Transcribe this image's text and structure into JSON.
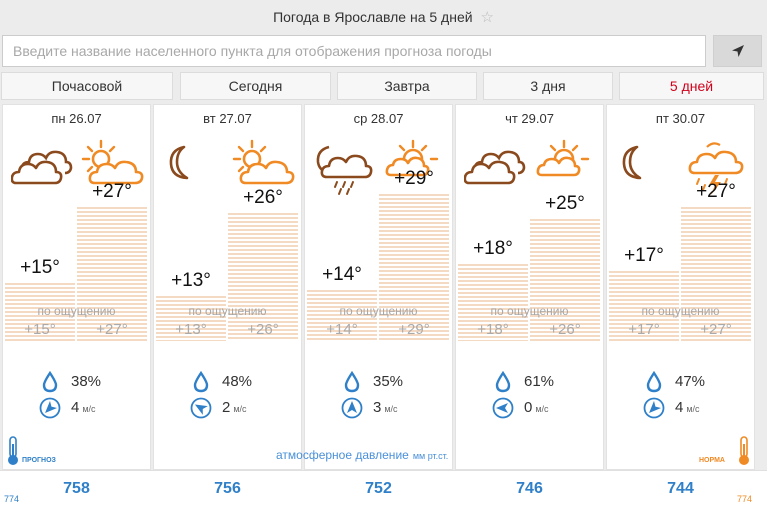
{
  "header": {
    "title": "Погода в Ярославле на 5 дней",
    "favorite_icon": "star-icon"
  },
  "search": {
    "placeholder": "Введите название населенного пункта для отображения прогноза погоды",
    "locate_icon": "location-arrow-icon"
  },
  "tabs": [
    {
      "label": "Почасовой",
      "active": false
    },
    {
      "label": "Сегодня",
      "active": false
    },
    {
      "label": "Завтра",
      "active": false
    },
    {
      "label": "3 дня",
      "active": false
    },
    {
      "label": "5 дней",
      "active": true
    }
  ],
  "feels_caption": "по ощущению",
  "wind_unit": "м/с",
  "days": [
    {
      "title": "пн 26.07",
      "night_icon": "cloudy-icon",
      "day_icon": "partly-cloudy-icon",
      "night_temp": "+15°",
      "day_temp": "+27°",
      "night_feels": "+15°",
      "day_feels": "+27°",
      "humidity": "38%",
      "wind": "4",
      "wind_dir_icon": "wind-direction-icon",
      "pressure": "758"
    },
    {
      "title": "вт 27.07",
      "night_icon": "moon-icon",
      "day_icon": "partly-cloudy-icon",
      "night_temp": "+13°",
      "day_temp": "+26°",
      "night_feels": "+13°",
      "day_feels": "+26°",
      "humidity": "48%",
      "wind": "2",
      "wind_dir_icon": "wind-direction-icon",
      "pressure": "756"
    },
    {
      "title": "ср 28.07",
      "night_icon": "moon-cloud-rain-icon",
      "day_icon": "sun-cloud-icon",
      "night_temp": "+14°",
      "day_temp": "+29°",
      "night_feels": "+14°",
      "day_feels": "+29°",
      "humidity": "35%",
      "wind": "3",
      "wind_dir_icon": "wind-direction-icon",
      "pressure": "752"
    },
    {
      "title": "чт 29.07",
      "night_icon": "cloudy-icon",
      "day_icon": "sun-cloud-icon",
      "night_temp": "+18°",
      "day_temp": "+25°",
      "night_feels": "+18°",
      "day_feels": "+26°",
      "humidity": "61%",
      "wind": "0",
      "wind_dir_icon": "wind-direction-icon",
      "pressure": "746"
    },
    {
      "title": "пт 30.07",
      "night_icon": "moon-icon",
      "day_icon": "thunderstorm-icon",
      "night_temp": "+17°",
      "day_temp": "+27°",
      "night_feels": "+17°",
      "day_feels": "+27°",
      "humidity": "47%",
      "wind": "4",
      "wind_dir_icon": "wind-direction-icon",
      "pressure": "744"
    }
  ],
  "pressure": {
    "title": "атмосферное давление",
    "unit": "мм рт.ст.",
    "forecast_label": "ПРОГНОЗ",
    "norm_label": "НОРМА",
    "forecast_value": "774",
    "norm_value": "774"
  },
  "colors": {
    "accent_red": "#d0021b",
    "brown": "#8a4a1e",
    "orange": "#f08a24",
    "blue": "#2f80c8",
    "bar": "#f4d9c3"
  }
}
